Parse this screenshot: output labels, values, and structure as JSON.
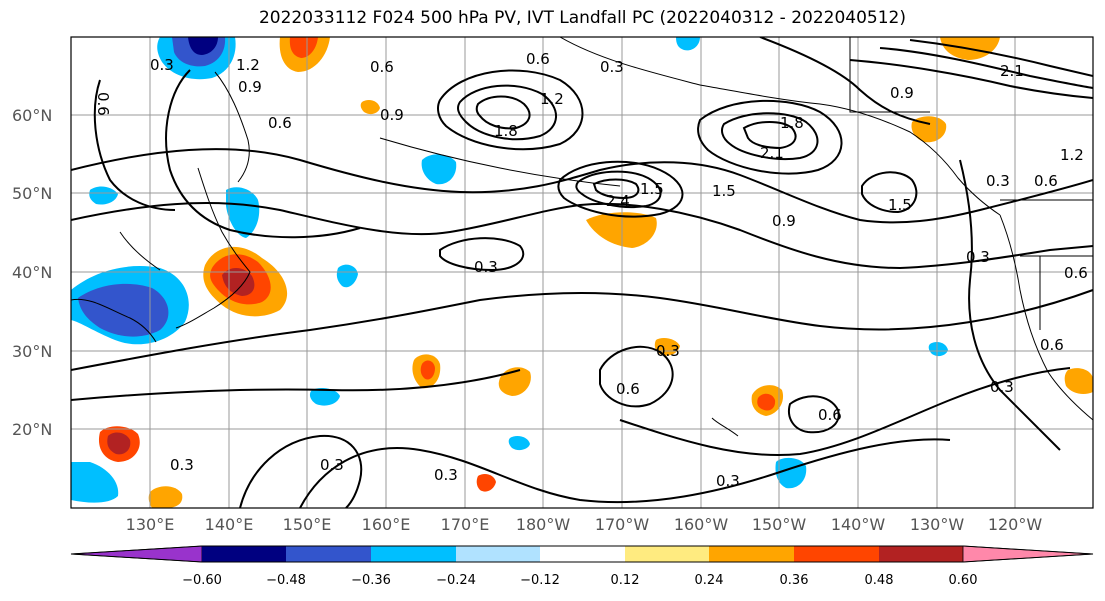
{
  "title": "2022033112 F024 500 hPa PV, IVT Landfall PC (2022040312 - 2022040512)",
  "lat_labels": [
    "60°N",
    "50°N",
    "40°N",
    "30°N",
    "20°N"
  ],
  "lon_labels": [
    "130°E",
    "140°E",
    "150°E",
    "160°E",
    "170°E",
    "180°W",
    "170°W",
    "160°W",
    "150°W",
    "140°W",
    "130°W",
    "120°W"
  ],
  "colorbar": {
    "ticks": [
      "−0.60",
      "−0.48",
      "−0.36",
      "−0.24",
      "−0.12",
      "0.12",
      "0.24",
      "0.36",
      "0.48",
      "0.60"
    ],
    "colors": [
      "#9933cc",
      "#000080",
      "#3355cc",
      "#00bfff",
      "#b0e2ff",
      "#ffffff",
      "#ffeb80",
      "#ffa500",
      "#ff4500",
      "#b22222",
      "#ff88aa"
    ]
  },
  "contour_labels": [
    "0.3",
    "1.2",
    "0.9",
    "0.6",
    "0.9",
    "0.6",
    "0.6",
    "0.3",
    "0.6",
    "1.2",
    "1.8",
    "2.1",
    "0.9",
    "1.5",
    "2.1",
    "1.8",
    "2.4",
    "1.5",
    "0.9",
    "1.5",
    "0.3",
    "0.6",
    "1.2",
    "0.3",
    "0.6",
    "0.3",
    "0.3",
    "0.6",
    "0.6",
    "0.3",
    "0.3",
    "0.3",
    "0.6",
    "0.3",
    "0.3"
  ],
  "colors": {
    "contour": "#000000",
    "grid": "#888888",
    "land": "#000000"
  }
}
